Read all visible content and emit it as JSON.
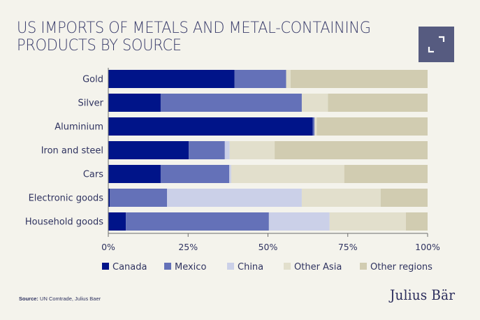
{
  "header": {
    "title_line1": "US IMPORTS OF METALS AND METAL-CONTAINING",
    "title_line2": "PRODUCTS BY SOURCE",
    "expand_icon": "expand-icon"
  },
  "footer": {
    "source_label": "Source:",
    "source_text": " UN Comtrade, Julius Baer",
    "logo": "Julius Bär"
  },
  "chart_data": {
    "type": "bar",
    "orientation": "horizontal",
    "stacked": true,
    "title": "US IMPORTS OF METALS AND METAL-CONTAINING PRODUCTS BY SOURCE",
    "xlabel": "",
    "ylabel": "",
    "xlim": [
      0,
      100
    ],
    "x_ticks": [
      "0%",
      "25%",
      "50%",
      "75%",
      "100%"
    ],
    "x_tick_values": [
      0,
      25,
      50,
      75,
      100
    ],
    "grid": false,
    "legend_position": "bottom",
    "categories": [
      "Gold",
      "Silver",
      "Aluminium",
      "Iron and steel",
      "Cars",
      "Electronic goods",
      "Household goods"
    ],
    "series": [
      {
        "name": "Canada",
        "color": "#001489",
        "values": [
          39.5,
          16.4,
          64.0,
          25.2,
          16.4,
          0.5,
          5.5
        ]
      },
      {
        "name": "Mexico",
        "color": "#6471b8",
        "values": [
          16.2,
          44.2,
          0.6,
          11.3,
          21.5,
          17.9,
          44.8
        ]
      },
      {
        "name": "China",
        "color": "#cbd0e8",
        "values": [
          0.0,
          0.0,
          0.0,
          1.5,
          0.6,
          42.2,
          19.0
        ]
      },
      {
        "name": "Other Asia",
        "color": "#e2dfcc",
        "values": [
          1.4,
          8.2,
          0.7,
          14.1,
          35.4,
          24.7,
          23.9
        ]
      },
      {
        "name": "Other regions",
        "color": "#d1ccb1",
        "values": [
          42.9,
          31.2,
          34.7,
          47.9,
          26.1,
          14.7,
          6.8
        ]
      }
    ]
  }
}
